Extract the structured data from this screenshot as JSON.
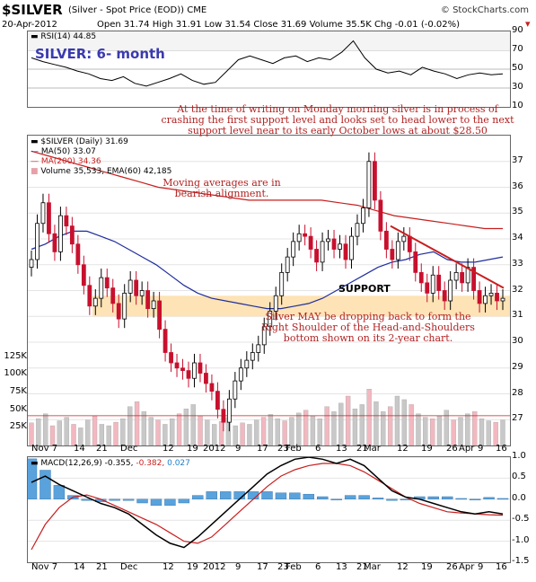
{
  "header": {
    "symbol": "$SILVER",
    "desc": "(Silver - Spot Price (EOD)) CME",
    "source": "© StockCharts.com",
    "date": "20-Apr-2012",
    "ohlc": "Open 31.74  High 31.91  Low 31.54  Close 31.69  Volume 35.5K  Chg -0.01 (-0.02%)",
    "chg_marker": "▾"
  },
  "rsi": {
    "legend": "RSI(14) 44.85",
    "title": "SILVER: 6- month",
    "ticks": [
      "90",
      "70",
      "50",
      "30",
      "10"
    ]
  },
  "price": {
    "legend_symbol": "$SILVER (Daily) 31.69",
    "legend_ma50": "MA(50) 33.07",
    "legend_ma200": "MA(200) 34.36",
    "legend_volume": "Volume 35,533, EMA(60) 42,185",
    "price_ticks": [
      "37",
      "36",
      "35",
      "34",
      "33",
      "32",
      "31",
      "30",
      "29",
      "28",
      "27"
    ],
    "volume_ticks": [
      "125K",
      "100K",
      "75K",
      "50K",
      "25K"
    ],
    "support_label": "SUPPORT",
    "note_top": "At the time of writing on Monday morning silver is in process of crashing the first support level and looks set to head lower to the next support level near to its early October lows at about $28.50",
    "note_ma": "Moving averages are in bearish alignment.",
    "note_hs": "Silver MAY be dropping back to form the Right Shoulder of the Head-and-Shoulders bottom shown on its 2-year chart.",
    "colors": {
      "ma50": "#1f2e9c",
      "ma200": "#c81e1e",
      "support": "#fde3b5",
      "up": "#000000",
      "down": "#c8102e"
    }
  },
  "xaxis": [
    "Nov 7",
    "14",
    "21",
    "Dec",
    "12",
    "19",
    "2012",
    "9",
    "17",
    "23",
    "Feb",
    "6",
    "13",
    "21",
    "Mar",
    "12",
    "19",
    "26",
    "Apr",
    "9",
    "16"
  ],
  "macd": {
    "legend_label": "MACD(12,26,9)",
    "legend_v1": "-0.355,",
    "legend_v2": "-0.382,",
    "legend_v3": "0.027",
    "ticks": [
      "1.0",
      "0.5",
      "0.0",
      "-0.5",
      "-1.0",
      "-1.5"
    ]
  },
  "chart_data": {
    "type": "line",
    "title": "SILVER: 6- month",
    "ylabel": "",
    "price_ylim": [
      26,
      38
    ],
    "rsi_ylim": [
      10,
      90
    ],
    "macd_ylim": [
      -1.5,
      1.0
    ],
    "price_close": [
      33.2,
      34.6,
      35.4,
      34.2,
      33.5,
      34.9,
      34.5,
      33.8,
      33.0,
      32.2,
      31.4,
      31.7,
      32.5,
      32.1,
      31.5,
      30.9,
      31.9,
      32.4,
      31.8,
      32.0,
      31.3,
      31.6,
      30.5,
      29.6,
      29.2,
      29.0,
      28.9,
      28.6,
      29.2,
      28.8,
      28.4,
      28.1,
      27.4,
      26.9,
      27.8,
      28.5,
      29.0,
      29.3,
      29.6,
      29.9,
      30.6,
      31.2,
      31.8,
      32.7,
      33.3,
      33.9,
      34.2,
      34.1,
      33.6,
      33.1,
      33.9,
      34.0,
      33.6,
      33.8,
      33.2,
      34.1,
      34.6,
      35.2,
      37.0,
      35.5,
      34.3,
      33.6,
      33.2,
      33.9,
      34.1,
      33.5,
      32.7,
      32.3,
      31.9,
      32.6,
      32.0,
      31.6,
      32.4,
      32.7,
      32.3,
      32.9,
      32.0,
      31.5,
      31.8,
      31.9,
      31.6,
      31.7
    ],
    "ma50": [
      33.6,
      33.8,
      34.1,
      34.3,
      34.3,
      34.1,
      33.9,
      33.6,
      33.3,
      33.0,
      32.6,
      32.2,
      31.9,
      31.7,
      31.6,
      31.5,
      31.4,
      31.3,
      31.3,
      31.4,
      31.5,
      31.7,
      32.0,
      32.3,
      32.6,
      32.9,
      33.1,
      33.2,
      33.4,
      33.5,
      33.2,
      33.1,
      33.1,
      33.2,
      33.3
    ],
    "ma200": [
      37.4,
      37.2,
      37.0,
      36.8,
      36.6,
      36.4,
      36.2,
      36.0,
      35.9,
      35.8,
      35.7,
      35.6,
      35.5,
      35.5,
      35.5,
      35.5,
      35.5,
      35.4,
      35.3,
      35.1,
      34.9,
      34.8,
      34.7,
      34.6,
      34.5,
      34.4,
      34.4
    ],
    "rsi": [
      62,
      58,
      55,
      52,
      48,
      45,
      40,
      38,
      42,
      35,
      32,
      36,
      40,
      45,
      38,
      34,
      36,
      48,
      60,
      64,
      60,
      56,
      62,
      64,
      58,
      62,
      60,
      68,
      80,
      62,
      50,
      46,
      48,
      44,
      52,
      48,
      45,
      40,
      44,
      46,
      44,
      45
    ],
    "volume_k": [
      32,
      38,
      45,
      28,
      35,
      40,
      30,
      25,
      36,
      42,
      30,
      28,
      33,
      38,
      55,
      62,
      48,
      40,
      36,
      30,
      38,
      45,
      52,
      58,
      42,
      36,
      30,
      34,
      40,
      28,
      32,
      30,
      36,
      40,
      44,
      38,
      35,
      40,
      46,
      50,
      42,
      38,
      55,
      48,
      60,
      70,
      52,
      58,
      80,
      62,
      48,
      55,
      70,
      65,
      58,
      45,
      40,
      38,
      42,
      50,
      36,
      40,
      45,
      48,
      38,
      35,
      33,
      36
    ],
    "volume_ema60_k": 42.185,
    "support_zone": [
      31.0,
      31.8
    ],
    "macd": [
      0.4,
      0.55,
      0.35,
      0.2,
      0.05,
      -0.1,
      -0.2,
      -0.35,
      -0.6,
      -0.85,
      -1.05,
      -1.15,
      -0.9,
      -0.6,
      -0.3,
      0.0,
      0.3,
      0.6,
      0.8,
      0.95,
      1.0,
      0.95,
      0.85,
      0.95,
      0.8,
      0.5,
      0.2,
      0.05,
      0.0,
      -0.1,
      -0.2,
      -0.3,
      -0.35,
      -0.3,
      -0.35
    ],
    "signal": [
      -1.2,
      -0.6,
      -0.2,
      0.05,
      0.1,
      0.0,
      -0.15,
      -0.3,
      -0.45,
      -0.6,
      -0.8,
      -1.0,
      -1.05,
      -0.9,
      -0.6,
      -0.3,
      0.0,
      0.3,
      0.55,
      0.7,
      0.8,
      0.85,
      0.85,
      0.8,
      0.65,
      0.45,
      0.25,
      0.05,
      -0.1,
      -0.2,
      -0.3,
      -0.33,
      -0.35,
      -0.37,
      -0.38
    ]
  }
}
